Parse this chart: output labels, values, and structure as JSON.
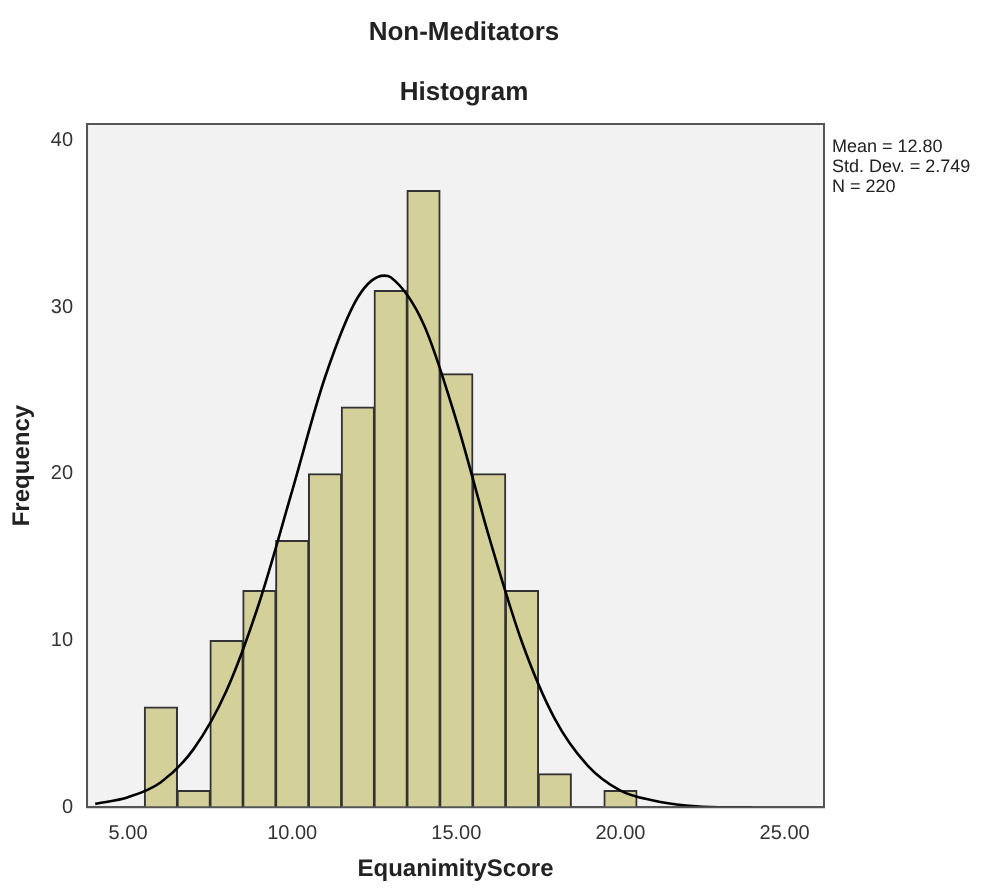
{
  "chart_data": {
    "type": "histogram",
    "title": "Non-Meditators",
    "subtitle": "Histogram",
    "xlabel": "EquanimityScore",
    "ylabel": "Frequency",
    "series": [
      {
        "bins": [
          5.5,
          6.5,
          7.5,
          8.5,
          9.5,
          10.5,
          11.5,
          12.5,
          13.5,
          14.5,
          15.5,
          16.5,
          17.5,
          18.5,
          19.5,
          20.5
        ],
        "values": [
          6,
          1,
          10,
          13,
          16,
          20,
          24,
          31,
          37,
          26,
          20,
          13,
          2,
          0,
          1
        ],
        "color": "#d4d09a"
      },
      {
        "type": "line",
        "x": [
          4,
          5,
          6,
          7,
          8,
          9,
          10,
          11,
          12,
          12.8,
          13,
          14,
          15,
          16,
          17,
          18,
          19,
          20,
          21,
          22,
          23,
          24
        ],
        "values": [
          0.2,
          0.6,
          1.5,
          3.5,
          7,
          12.3,
          19,
          25.8,
          30.6,
          31.9,
          31.8,
          29,
          23.2,
          16.2,
          9.9,
          5.3,
          2.5,
          1,
          0.4,
          0.1,
          0,
          0
        ],
        "color": "#000000"
      }
    ],
    "xlim": [
      3.75,
      26.2
    ],
    "xticks": [
      {
        "value": 5,
        "label": "5.00"
      },
      {
        "value": 10,
        "label": "10.00"
      },
      {
        "value": 15,
        "label": "15.00"
      },
      {
        "value": 20,
        "label": "20.00"
      },
      {
        "value": 25,
        "label": "25.00"
      }
    ],
    "ylim": [
      0,
      41
    ],
    "yticks": [
      0,
      10,
      20,
      30,
      40
    ],
    "annotations": [
      "Mean = 12.80",
      "Std. Dev. = 2.749",
      "N = 220"
    ],
    "grid": false,
    "legend": false,
    "marker": "none"
  }
}
